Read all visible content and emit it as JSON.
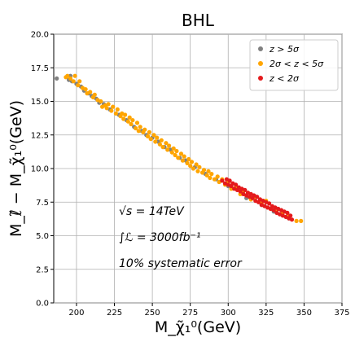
{
  "chart_data": {
    "type": "scatter",
    "title": "BHL",
    "xlabel": "M_χ̃₁⁰(GeV)",
    "ylabel": "M_ℓ̃ − M_χ̃₁⁰(GeV)",
    "xlim": [
      185,
      375
    ],
    "ylim": [
      0,
      20
    ],
    "xticks": [
      "200",
      "225",
      "250",
      "275",
      "300",
      "325",
      "350",
      "375"
    ],
    "xtick_values": [
      200,
      225,
      250,
      275,
      300,
      325,
      350,
      375
    ],
    "yticks": [
      "0.0",
      "2.5",
      "5.0",
      "7.5",
      "10.0",
      "12.5",
      "15.0",
      "17.5",
      "20.0"
    ],
    "ytick_values": [
      0,
      2.5,
      5,
      7.5,
      10,
      12.5,
      15,
      17.5,
      20
    ],
    "grid": true,
    "legend_position": "top-right",
    "series": [
      {
        "name": "z > 5σ",
        "color": "#808080",
        "points": [
          [
            187,
            16.7
          ],
          [
            195,
            16.6
          ],
          [
            196,
            16.9
          ],
          [
            197,
            16.5
          ],
          [
            200,
            16.3
          ],
          [
            203,
            16.1
          ],
          [
            205,
            15.8
          ],
          [
            208,
            15.6
          ],
          [
            210,
            15.4
          ],
          [
            213,
            15.2
          ],
          [
            215,
            14.9
          ],
          [
            218,
            14.8
          ],
          [
            222,
            14.4
          ],
          [
            228,
            14.0
          ],
          [
            233,
            13.6
          ],
          [
            238,
            13.1
          ],
          [
            243,
            12.8
          ],
          [
            246,
            12.5
          ],
          [
            250,
            12.3
          ],
          [
            254,
            12.0
          ],
          [
            258,
            11.6
          ],
          [
            262,
            11.4
          ],
          [
            268,
            10.8
          ],
          [
            272,
            10.6
          ],
          [
            278,
            10.1
          ],
          [
            285,
            9.6
          ],
          [
            292,
            9.2
          ],
          [
            300,
            8.7
          ],
          [
            312,
            7.8
          ],
          [
            322,
            7.3
          ],
          [
            330,
            6.8
          ],
          [
            340,
            6.3
          ]
        ]
      },
      {
        "name": "2σ < z < 5σ",
        "color": "#ffa500",
        "points": [
          [
            193,
            16.8
          ],
          [
            194,
            16.9
          ],
          [
            196,
            16.7
          ],
          [
            198,
            16.5
          ],
          [
            199,
            16.9
          ],
          [
            201,
            16.2
          ],
          [
            202,
            16.5
          ],
          [
            204,
            16.0
          ],
          [
            206,
            15.9
          ],
          [
            207,
            15.6
          ],
          [
            209,
            15.7
          ],
          [
            211,
            15.3
          ],
          [
            212,
            15.5
          ],
          [
            214,
            15.1
          ],
          [
            216,
            15.0
          ],
          [
            217,
            14.6
          ],
          [
            219,
            14.7
          ],
          [
            220,
            14.5
          ],
          [
            221,
            14.8
          ],
          [
            223,
            14.3
          ],
          [
            224,
            14.6
          ],
          [
            226,
            14.1
          ],
          [
            227,
            14.4
          ],
          [
            229,
            13.9
          ],
          [
            230,
            14.1
          ],
          [
            231,
            13.7
          ],
          [
            232,
            14.0
          ],
          [
            234,
            13.5
          ],
          [
            235,
            13.8
          ],
          [
            236,
            13.3
          ],
          [
            237,
            13.6
          ],
          [
            239,
            13.0
          ],
          [
            240,
            13.4
          ],
          [
            241,
            12.8
          ],
          [
            242,
            13.1
          ],
          [
            244,
            12.7
          ],
          [
            245,
            12.9
          ],
          [
            247,
            12.4
          ],
          [
            248,
            12.7
          ],
          [
            249,
            12.2
          ],
          [
            251,
            12.5
          ],
          [
            252,
            12.0
          ],
          [
            253,
            12.3
          ],
          [
            255,
            11.8
          ],
          [
            256,
            12.1
          ],
          [
            257,
            11.6
          ],
          [
            259,
            11.9
          ],
          [
            260,
            11.4
          ],
          [
            261,
            11.7
          ],
          [
            263,
            11.2
          ],
          [
            264,
            11.5
          ],
          [
            265,
            11.0
          ],
          [
            266,
            11.3
          ],
          [
            267,
            10.8
          ],
          [
            269,
            11.1
          ],
          [
            270,
            10.6
          ],
          [
            271,
            10.9
          ],
          [
            273,
            10.4
          ],
          [
            274,
            10.7
          ],
          [
            275,
            10.2
          ],
          [
            276,
            10.5
          ],
          [
            277,
            10.0
          ],
          [
            279,
            10.3
          ],
          [
            280,
            9.8
          ],
          [
            281,
            10.1
          ],
          [
            283,
            9.7
          ],
          [
            284,
            9.9
          ],
          [
            286,
            9.5
          ],
          [
            287,
            9.8
          ],
          [
            288,
            9.3
          ],
          [
            289,
            9.6
          ],
          [
            291,
            9.2
          ],
          [
            293,
            9.4
          ],
          [
            294,
            9.0
          ],
          [
            296,
            9.2
          ],
          [
            298,
            8.8
          ],
          [
            300,
            9.0
          ],
          [
            302,
            8.5
          ],
          [
            305,
            8.6
          ],
          [
            308,
            8.1
          ],
          [
            310,
            8.3
          ],
          [
            315,
            7.7
          ],
          [
            318,
            7.9
          ],
          [
            322,
            7.4
          ],
          [
            325,
            7.6
          ],
          [
            328,
            7.0
          ],
          [
            332,
            6.9
          ],
          [
            336,
            6.7
          ],
          [
            340,
            6.5
          ],
          [
            345,
            6.1
          ],
          [
            348,
            6.1
          ]
        ]
      },
      {
        "name": "z < 2σ",
        "color": "#e41a1c",
        "points": [
          [
            296,
            9.1
          ],
          [
            298,
            8.9
          ],
          [
            299,
            9.2
          ],
          [
            300,
            8.8
          ],
          [
            301,
            9.1
          ],
          [
            302,
            8.7
          ],
          [
            303,
            8.9
          ],
          [
            304,
            8.5
          ],
          [
            305,
            8.8
          ],
          [
            306,
            8.4
          ],
          [
            307,
            8.6
          ],
          [
            308,
            8.3
          ],
          [
            309,
            8.5
          ],
          [
            310,
            8.1
          ],
          [
            311,
            8.4
          ],
          [
            312,
            8.0
          ],
          [
            313,
            8.2
          ],
          [
            314,
            7.9
          ],
          [
            315,
            8.1
          ],
          [
            316,
            7.8
          ],
          [
            317,
            8.0
          ],
          [
            318,
            7.6
          ],
          [
            319,
            7.9
          ],
          [
            320,
            7.5
          ],
          [
            321,
            7.7
          ],
          [
            322,
            7.3
          ],
          [
            323,
            7.6
          ],
          [
            324,
            7.2
          ],
          [
            325,
            7.5
          ],
          [
            326,
            7.1
          ],
          [
            327,
            7.4
          ],
          [
            328,
            7.0
          ],
          [
            329,
            7.2
          ],
          [
            330,
            6.9
          ],
          [
            331,
            7.1
          ],
          [
            332,
            6.7
          ],
          [
            333,
            7.0
          ],
          [
            334,
            6.6
          ],
          [
            335,
            6.9
          ],
          [
            336,
            6.5
          ],
          [
            337,
            6.8
          ],
          [
            338,
            6.4
          ],
          [
            339,
            6.7
          ],
          [
            340,
            6.3
          ],
          [
            341,
            6.5
          ],
          [
            342,
            6.2
          ]
        ]
      }
    ],
    "annotations": [
      "√s = 14TeV",
      "∫ℒ = 3000fb⁻¹",
      "10% systematic error"
    ]
  }
}
